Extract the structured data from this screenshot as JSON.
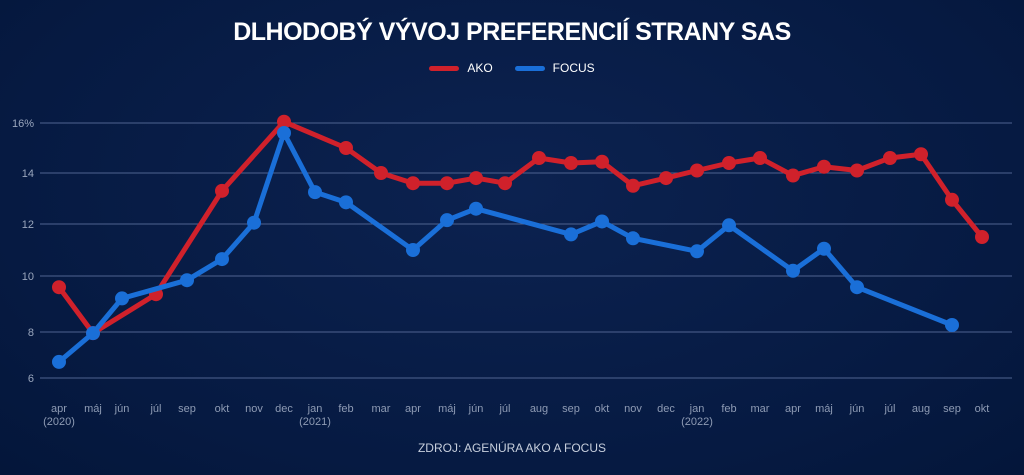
{
  "chart_data": {
    "type": "line",
    "title": "DLHODOBÝ VÝVOJ PREFERENCIÍ STRANY SAS",
    "source": "ZDROJ: AGENÚRA AKO A FOCUS",
    "yticks": [
      "16%",
      "14",
      "12",
      "10",
      "8",
      "6"
    ],
    "ytick_values": [
      16,
      14,
      12,
      10,
      8,
      6
    ],
    "ylim": [
      6,
      16
    ],
    "grid": true,
    "legend_position": "top-center",
    "categories": [
      "apr",
      "máj",
      "jún",
      "júl",
      "sep",
      "okt",
      "nov",
      "dec",
      "jan",
      "feb",
      "mar",
      "apr",
      "máj",
      "jún",
      "júl",
      "aug",
      "sep",
      "okt",
      "nov",
      "dec",
      "jan",
      "feb",
      "mar",
      "apr",
      "máj",
      "jún",
      "júl",
      "aug",
      "sep",
      "okt"
    ],
    "year_labels": {
      "0": "(2020)",
      "8": "(2021)",
      "20": "(2022)"
    },
    "series": [
      {
        "name": "AKO",
        "color": "#d0212b",
        "values": [
          9.6,
          7.95,
          null,
          9.35,
          null,
          13.3,
          null,
          16.05,
          null,
          15.0,
          14.0,
          13.6,
          13.6,
          13.8,
          13.6,
          14.6,
          14.4,
          14.45,
          13.5,
          13.8,
          14.1,
          14.4,
          14.6,
          13.9,
          14.25,
          14.1,
          14.6,
          14.75,
          12.95,
          11.5
        ]
      },
      {
        "name": "FOCUS",
        "color": "#1a6fd8",
        "values": [
          6.7,
          7.95,
          9.2,
          null,
          9.85,
          10.65,
          12.05,
          15.6,
          13.25,
          12.85,
          null,
          11.0,
          12.15,
          12.6,
          null,
          null,
          11.6,
          12.1,
          11.45,
          null,
          10.95,
          11.95,
          null,
          10.2,
          11.05,
          9.6,
          null,
          null,
          8.25,
          null
        ]
      }
    ]
  }
}
